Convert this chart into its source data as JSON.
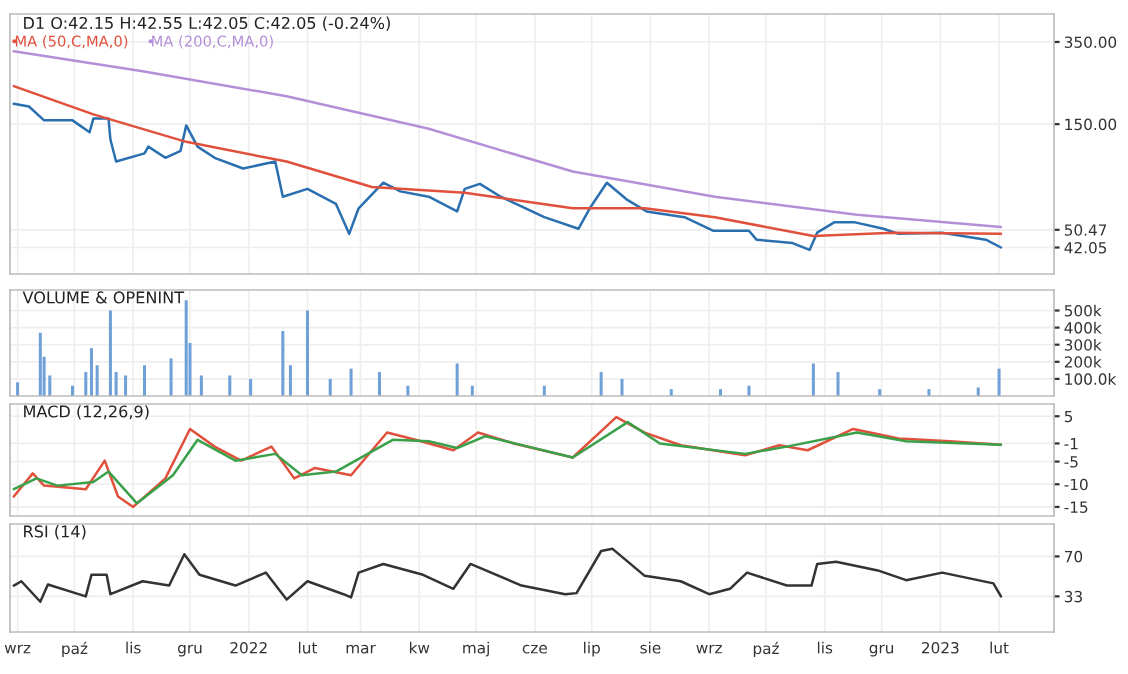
{
  "chart_data": [
    {
      "type": "line",
      "title": "D1 O:42.15 H:42.55 L:42.05 C:42.05 (-0.24%)",
      "log": true,
      "grid": true,
      "legend": "top left",
      "tick_labels": "y",
      "xlim": [
        "2021-08-28",
        "2023-03-02"
      ],
      "xticks": [
        {
          "value": "2021-09-01",
          "label": null
        },
        {
          "value": "2021-10-01",
          "label": null
        },
        {
          "value": "2021-11-01",
          "label": null
        },
        {
          "value": "2021-12-01",
          "label": null
        },
        {
          "value": "2022-01-01",
          "label": null
        },
        {
          "value": "2022-02-01",
          "label": null
        },
        {
          "value": "2022-03-01",
          "label": null
        },
        {
          "value": "2022-04-01",
          "label": null
        },
        {
          "value": "2022-05-01",
          "label": null
        },
        {
          "value": "2022-06-01",
          "label": null
        },
        {
          "value": "2022-07-01",
          "label": null
        },
        {
          "value": "2022-08-01",
          "label": null
        },
        {
          "value": "2022-09-01",
          "label": null
        },
        {
          "value": "2022-10-01",
          "label": null
        },
        {
          "value": "2022-11-01",
          "label": null
        },
        {
          "value": "2022-12-01",
          "label": null
        },
        {
          "value": "2023-01-01",
          "label": null
        },
        {
          "value": "2023-02-01",
          "label": null
        }
      ],
      "ylim": [
        32,
        467
      ],
      "yticks": [
        {
          "value": 350,
          "label": "350.00"
        },
        {
          "value": 150,
          "label": "150.00"
        },
        {
          "value": 50.47,
          "label": "50.47"
        },
        {
          "value": 42.05,
          "label": "42.05"
        }
      ],
      "series": [
        {
          "color": "#2a6fb0",
          "x": [
            "2021-08-30",
            "2021-09-07",
            "2021-09-15",
            "2021-09-30",
            "2021-10-09",
            "2021-10-11",
            "2021-10-19",
            "2021-10-20",
            "2021-10-23",
            "2021-11-07",
            "2021-11-09",
            "2021-11-18",
            "2021-11-26",
            "2021-11-29",
            "2021-12-05",
            "2021-12-14",
            "2021-12-29",
            "2022-01-15",
            "2022-01-19",
            "2022-02-01",
            "2022-02-16",
            "2022-02-23",
            "2022-02-28",
            "2022-03-13",
            "2022-03-22",
            "2022-04-06",
            "2022-04-21",
            "2022-04-25",
            "2022-05-03",
            "2022-05-14",
            "2022-06-06",
            "2022-06-24",
            "2022-06-30",
            "2022-07-09",
            "2022-07-20",
            "2022-07-30",
            "2022-08-19",
            "2022-09-03",
            "2022-09-22",
            "2022-09-26",
            "2022-10-15",
            "2022-10-24",
            "2022-10-28",
            "2022-11-06",
            "2022-11-17",
            "2022-12-02",
            "2022-12-10",
            "2023-01-02",
            "2023-01-25",
            "2023-02-02"
          ],
          "values": [
            185,
            180,
            156,
            156,
            138,
            159,
            159,
            128,
            102,
            111,
            119,
            106,
            114,
            148,
            119,
            106,
            95,
            102,
            71,
            77,
            66,
            48.4,
            63,
            82,
            75,
            71,
            61,
            77,
            81,
            71,
            57.5,
            51,
            63,
            82,
            68.5,
            61,
            57.5,
            50,
            50,
            45.6,
            44,
            41,
            49,
            54.5,
            54.5,
            51,
            48.4,
            49,
            45.6,
            42.05
          ]
        },
        {
          "name": "MA (50,C,MA,0)",
          "color": "#e0503c",
          "x": [
            "2021-08-30",
            "2021-10-11",
            "2021-11-29",
            "2022-01-21",
            "2022-03-07",
            "2022-04-25",
            "2022-06-21",
            "2022-07-29",
            "2022-09-04",
            "2022-10-26",
            "2022-12-07",
            "2023-02-02"
          ],
          "values": [
            222,
            166,
            125,
            102,
            78.5,
            74,
            63,
            63,
            57.5,
            47.3,
            49,
            48.4
          ]
        },
        {
          "name": "MA (200,C,MA,0)",
          "color": "#b48fd8",
          "x": [
            "2021-08-30",
            "2021-11-06",
            "2022-01-21",
            "2022-04-06",
            "2022-06-21",
            "2022-09-04",
            "2022-11-18",
            "2023-02-02"
          ],
          "values": [
            318,
            259,
            200,
            143,
            92,
            71,
            59,
            52
          ]
        }
      ]
    },
    {
      "type": "bar",
      "title": "VOLUME & OPENINT",
      "grid": true,
      "tick_labels": "y",
      "color": "#6fa0d8",
      "xlim": [
        "2021-08-28",
        "2023-03-02"
      ],
      "ylim": [
        0,
        620000
      ],
      "yticks": [
        {
          "value": 500000,
          "label": "500k"
        },
        {
          "value": 400000,
          "label": "400k"
        },
        {
          "value": 300000,
          "label": "300k"
        },
        {
          "value": 200000,
          "label": "200k"
        },
        {
          "value": 100000,
          "label": "100.0k"
        }
      ],
      "x": [
        "2021-09-01",
        "2021-09-13",
        "2021-09-15",
        "2021-09-18",
        "2021-09-30",
        "2021-10-07",
        "2021-10-10",
        "2021-10-13",
        "2021-10-20",
        "2021-10-23",
        "2021-10-28",
        "2021-11-07",
        "2021-11-21",
        "2021-11-29",
        "2021-12-01",
        "2021-12-07",
        "2021-12-22",
        "2022-01-02",
        "2022-01-19",
        "2022-01-23",
        "2022-02-01",
        "2022-02-13",
        "2022-02-24",
        "2022-03-11",
        "2022-03-26",
        "2022-04-21",
        "2022-04-29",
        "2022-06-06",
        "2022-07-06",
        "2022-07-17",
        "2022-08-12",
        "2022-09-07",
        "2022-09-22",
        "2022-10-26",
        "2022-11-08",
        "2022-11-30",
        "2022-12-26",
        "2023-01-21",
        "2023-02-01"
      ],
      "values": [
        80000,
        370000,
        230000,
        120000,
        60000,
        140000,
        280000,
        180000,
        500000,
        140000,
        120000,
        180000,
        220000,
        560000,
        310000,
        120000,
        120000,
        100000,
        380000,
        180000,
        500000,
        100000,
        160000,
        140000,
        60000,
        190000,
        60000,
        60000,
        140000,
        100000,
        40000,
        40000,
        60000,
        190000,
        140000,
        40000,
        40000,
        50000,
        160000
      ]
    },
    {
      "type": "line",
      "title": "MACD (12,26,9)",
      "grid": true,
      "tick_labels": "y",
      "xlim": [
        "2021-08-28",
        "2023-03-02"
      ],
      "ylim": [
        -17,
        7.7
      ],
      "yticks": [
        5,
        {
          "value": -1,
          "label": "-1"
        },
        -5,
        -10,
        -15
      ],
      "series": [
        {
          "color": "#e0503c",
          "x": [
            "2021-08-30",
            "2021-09-09",
            "2021-09-15",
            "2021-10-07",
            "2021-10-17",
            "2021-10-24",
            "2021-11-01",
            "2021-11-18",
            "2021-12-01",
            "2021-12-14",
            "2021-12-28",
            "2022-01-13",
            "2022-01-25",
            "2022-02-05",
            "2022-02-24",
            "2022-03-15",
            "2022-03-30",
            "2022-04-19",
            "2022-05-02",
            "2022-05-21",
            "2022-06-21",
            "2022-07-14",
            "2022-07-29",
            "2022-08-17",
            "2022-09-20",
            "2022-10-08",
            "2022-10-23",
            "2022-11-16",
            "2022-12-10",
            "2023-01-06",
            "2023-02-02"
          ],
          "values": [
            -12.7,
            -7.6,
            -10.3,
            -11.1,
            -4.8,
            -12.7,
            -15,
            -8.7,
            2.2,
            -1.7,
            -4.8,
            -1.7,
            -8.7,
            -6.4,
            -8,
            1.4,
            -0.2,
            -2.5,
            1.4,
            -1,
            -4.1,
            4.8,
            1.4,
            -1.4,
            -3.6,
            -1.4,
            -2.5,
            2.2,
            0.1,
            -0.5,
            -1.3
          ]
        },
        {
          "color": "#3aa04a",
          "x": [
            "2021-08-30",
            "2021-09-11",
            "2021-09-22",
            "2021-10-11",
            "2021-10-19",
            "2021-11-03",
            "2021-11-22",
            "2021-12-05",
            "2021-12-25",
            "2022-01-15",
            "2022-01-29",
            "2022-02-16",
            "2022-03-18",
            "2022-04-06",
            "2022-04-21",
            "2022-05-06",
            "2022-06-21",
            "2022-07-20",
            "2022-08-06",
            "2022-09-20",
            "2022-10-12",
            "2022-11-18",
            "2022-12-14",
            "2023-02-02"
          ],
          "values": [
            -11.1,
            -8.7,
            -10.3,
            -9.5,
            -7.2,
            -14.2,
            -8,
            -0.2,
            -4.8,
            -3.3,
            -8,
            -7.2,
            -0.2,
            -0.5,
            -2,
            0.6,
            -4.1,
            3.7,
            -1,
            -3.3,
            -1.7,
            1.4,
            -0.5,
            -1.3
          ]
        }
      ]
    },
    {
      "type": "line",
      "title": "RSI (14)",
      "grid": true,
      "xlim": [
        "2021-08-28",
        "2023-03-02"
      ],
      "xticks": [
        {
          "value": "2021-09-01",
          "label": "wrz"
        },
        {
          "value": "2021-10-01",
          "label": "paź"
        },
        {
          "value": "2021-11-01",
          "label": "lis"
        },
        {
          "value": "2021-12-01",
          "label": "gru"
        },
        {
          "value": "2022-01-01",
          "label": "2022"
        },
        {
          "value": "2022-02-01",
          "label": "lut"
        },
        {
          "value": "2022-03-01",
          "label": "mar"
        },
        {
          "value": "2022-04-01",
          "label": "kw"
        },
        {
          "value": "2022-05-01",
          "label": "maj"
        },
        {
          "value": "2022-06-01",
          "label": "cze"
        },
        {
          "value": "2022-07-01",
          "label": "lip"
        },
        {
          "value": "2022-08-01",
          "label": "sie"
        },
        {
          "value": "2022-09-01",
          "label": "wrz"
        },
        {
          "value": "2022-10-01",
          "label": "paź"
        },
        {
          "value": "2022-11-01",
          "label": "lis"
        },
        {
          "value": "2022-12-01",
          "label": "gru"
        },
        {
          "value": "2023-01-01",
          "label": "2023"
        },
        {
          "value": "2023-02-01",
          "label": "lut"
        }
      ],
      "ylim": [
        0,
        100
      ],
      "yticks": [
        70,
        {
          "value": 33,
          "label": "33"
        }
      ],
      "series": [
        {
          "color": "#333333",
          "x": [
            "2021-08-30",
            "2021-09-03",
            "2021-09-13",
            "2021-09-17",
            "2021-10-07",
            "2021-10-10",
            "2021-10-18",
            "2021-10-20",
            "2021-11-06",
            "2021-11-20",
            "2021-11-28",
            "2021-12-06",
            "2021-12-25",
            "2022-01-10",
            "2022-01-21",
            "2022-02-01",
            "2022-02-20",
            "2022-02-24",
            "2022-02-28",
            "2022-03-13",
            "2022-04-03",
            "2022-04-19",
            "2022-04-28",
            "2022-05-25",
            "2022-06-17",
            "2022-06-23",
            "2022-07-06",
            "2022-07-12",
            "2022-07-29",
            "2022-08-17",
            "2022-09-01",
            "2022-09-12",
            "2022-09-21",
            "2022-10-12",
            "2022-10-25",
            "2022-10-28",
            "2022-11-07",
            "2022-11-29",
            "2022-12-14",
            "2023-01-02",
            "2023-01-29",
            "2023-02-02"
          ],
          "values": [
            43,
            47,
            28,
            44,
            33,
            53,
            53,
            35,
            47,
            43,
            72,
            53,
            43,
            55,
            30,
            47,
            35,
            32,
            55,
            63,
            53,
            40,
            63,
            43,
            35,
            36,
            75,
            77,
            52,
            47,
            35,
            40,
            55,
            43,
            43,
            63,
            65,
            57,
            48,
            55,
            45,
            33
          ]
        }
      ]
    }
  ]
}
